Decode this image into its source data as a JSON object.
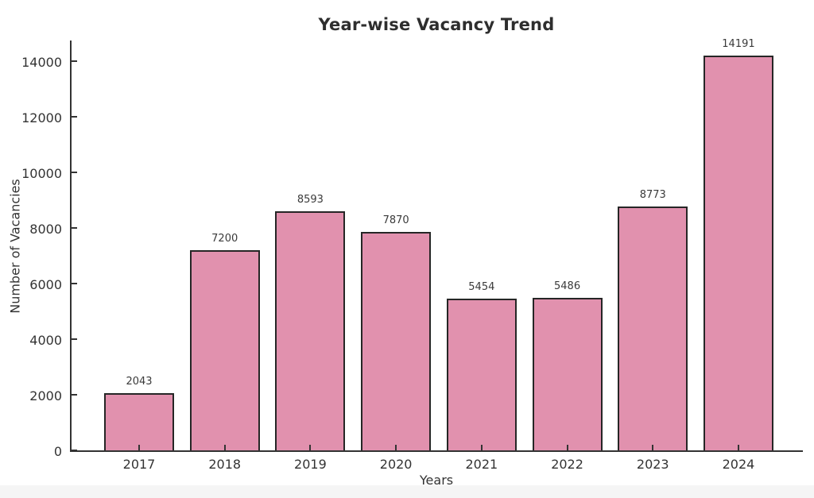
{
  "chart_data": {
    "type": "bar",
    "title": "Year-wise Vacancy Trend",
    "xlabel": "Years",
    "ylabel": "Number of Vacancies",
    "categories": [
      "2017",
      "2018",
      "2019",
      "2020",
      "2021",
      "2022",
      "2023",
      "2024"
    ],
    "values": [
      2043,
      7200,
      8593,
      7870,
      5454,
      5486,
      8773,
      14191
    ],
    "value_labels": [
      "2043",
      "7200",
      "8593",
      "7870",
      "5454",
      "5486",
      "8773",
      "14191"
    ],
    "yticks": [
      0,
      2000,
      4000,
      6000,
      8000,
      10000,
      12000,
      14000
    ],
    "ylim": [
      0,
      14800
    ],
    "grid": false,
    "legend": null,
    "bar_color": "#e191ae",
    "bar_edge_color": "#262626",
    "axis_color": "#333333",
    "text_color": "#333333",
    "background_color": "#ffffff"
  }
}
